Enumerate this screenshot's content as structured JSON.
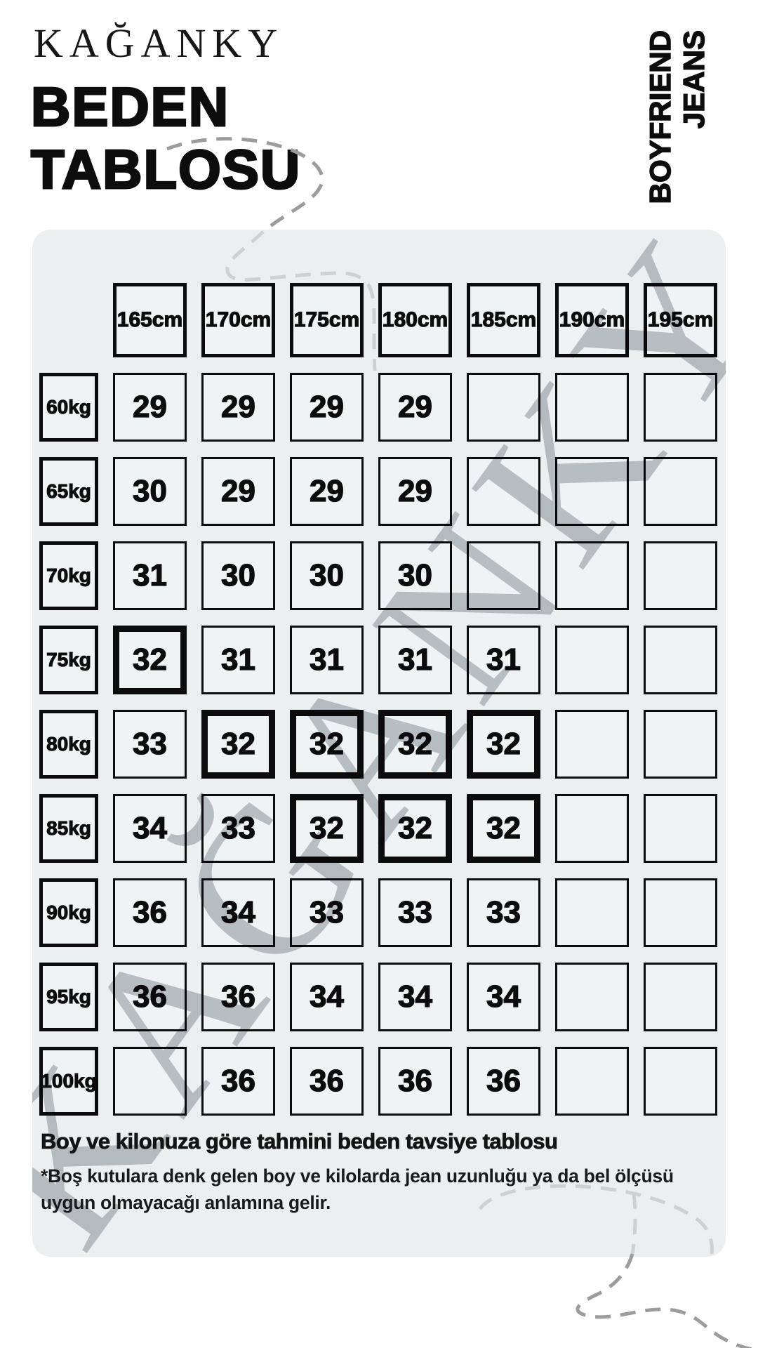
{
  "brand": "KAĞANKY",
  "header": {
    "title_line1": "BEDEN",
    "title_line2": "TABLOSU"
  },
  "product": {
    "line1": "BOYFRIEND",
    "line2": "JEANS"
  },
  "watermark_text": "KAĞANKY",
  "chart_data": {
    "type": "table",
    "title": "BEDEN TABLOSU",
    "columns_height": [
      "165cm",
      "170cm",
      "175cm",
      "180cm",
      "185cm",
      "190cm",
      "195cm"
    ],
    "rows_weight": [
      "60kg",
      "65kg",
      "70kg",
      "75kg",
      "80kg",
      "85kg",
      "90kg",
      "95kg",
      "100kg"
    ],
    "values": [
      [
        "29",
        "29",
        "29",
        "29",
        "",
        "",
        ""
      ],
      [
        "30",
        "29",
        "29",
        "29",
        "",
        "",
        ""
      ],
      [
        "31",
        "30",
        "30",
        "30",
        "",
        "",
        ""
      ],
      [
        "32",
        "31",
        "31",
        "31",
        "31",
        "",
        ""
      ],
      [
        "33",
        "32",
        "32",
        "32",
        "32",
        "",
        ""
      ],
      [
        "34",
        "33",
        "32",
        "32",
        "32",
        "",
        ""
      ],
      [
        "36",
        "34",
        "33",
        "33",
        "33",
        "",
        ""
      ],
      [
        "36",
        "36",
        "34",
        "34",
        "34",
        "",
        ""
      ],
      [
        "",
        "36",
        "36",
        "36",
        "36",
        "",
        ""
      ]
    ],
    "highlighted_cells": [
      {
        "row": 3,
        "col": 0
      },
      {
        "row": 4,
        "col": 1
      },
      {
        "row": 4,
        "col": 2
      },
      {
        "row": 4,
        "col": 3
      },
      {
        "row": 4,
        "col": 4
      },
      {
        "row": 5,
        "col": 2
      },
      {
        "row": 5,
        "col": 3
      },
      {
        "row": 5,
        "col": 4
      }
    ]
  },
  "footer": {
    "caption": "Boy ve kilonuza göre tahmini beden tavsiye tablosu",
    "note": "*Boş kutulara denk gelen boy ve kilolarda jean uzunluğu ya da bel ölçüsü uygun olmayacağı anlamına gelir."
  },
  "colors": {
    "background": "#ffffff",
    "panel": "#eceff0",
    "cell_fill": "#f0f3f4",
    "ink": "#0c0c0c",
    "watermark": "#c2c8cb",
    "dash_dark": "#9c9c9c",
    "dash_light": "#ccd2d4"
  }
}
